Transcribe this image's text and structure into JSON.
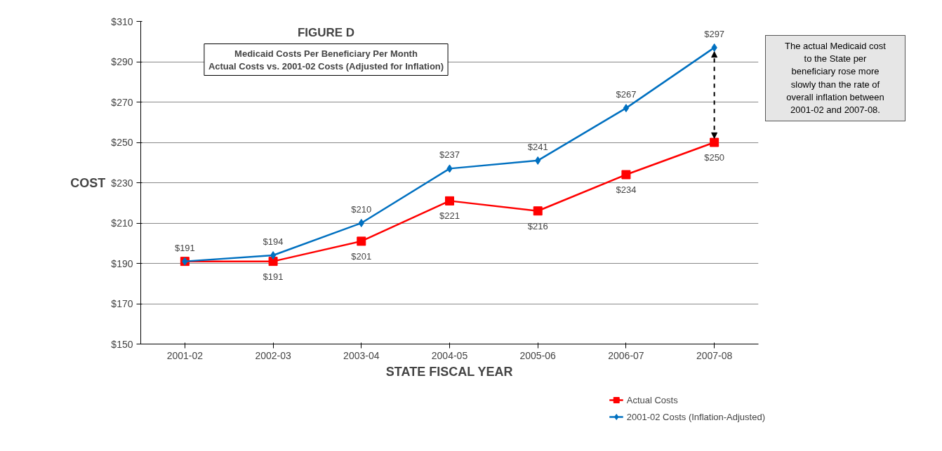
{
  "chart_data": {
    "type": "line",
    "title": "FIGURE D",
    "subtitle": "Medicaid Costs Per Beneficiary Per Month\nActual Costs vs. 2001-02 Costs (Adjusted for Inflation)",
    "xlabel": "STATE FISCAL YEAR",
    "ylabel": "COST",
    "categories": [
      "2001-02",
      "2002-03",
      "2003-04",
      "2004-05",
      "2005-06",
      "2006-07",
      "2007-08"
    ],
    "series": [
      {
        "name": "Actual Costs",
        "color": "#ff0000",
        "marker": "square",
        "values": [
          191,
          191,
          201,
          221,
          216,
          234,
          250
        ],
        "value_labels": [
          null,
          "$191",
          "$201",
          "$221",
          "$216",
          "$234",
          "$250"
        ]
      },
      {
        "name": "2001-02 Costs (Inflation-Adjusted)",
        "color": "#0070c0",
        "marker": "diamond",
        "values": [
          191,
          194,
          210,
          237,
          241,
          267,
          297
        ],
        "value_labels": [
          "$191",
          "$194",
          "$210",
          "$237",
          "$241",
          "$267",
          "$297"
        ]
      }
    ],
    "ylim": [
      150,
      310
    ],
    "yticks": [
      {
        "value": 150,
        "label": "$150"
      },
      {
        "value": 170,
        "label": "$170"
      },
      {
        "value": 190,
        "label": "$190"
      },
      {
        "value": 210,
        "label": "$210"
      },
      {
        "value": 230,
        "label": "$230"
      },
      {
        "value": 250,
        "label": "$250"
      },
      {
        "value": 270,
        "label": "$270"
      },
      {
        "value": 290,
        "label": "$290"
      },
      {
        "value": 310,
        "label": "$310"
      }
    ],
    "grid": "y",
    "legend": "bottom right",
    "line_style": "solid",
    "annotations": [
      "The actual Medicaid cost\nto the State per\nbeneficiary rose more\nslowly than the rate of\noverall inflation between\n2001-02 and 2007-08."
    ]
  }
}
